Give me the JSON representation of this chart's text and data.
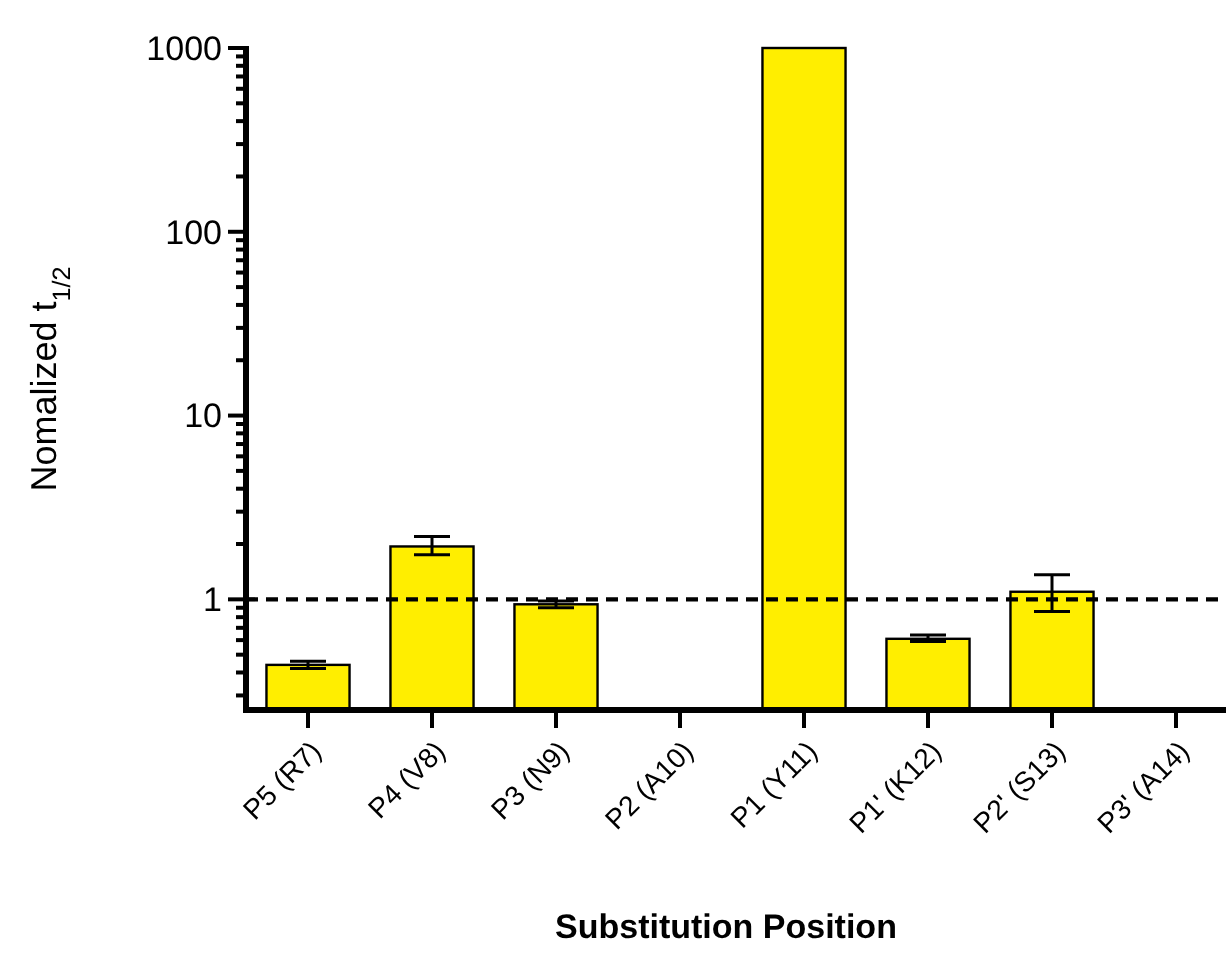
{
  "chart_data": {
    "type": "bar",
    "xlabel": "Substitution Position",
    "ylabel": "Nomalized t$_{1/2}$",
    "categories": [
      "P5 (R7)",
      "P4 (V8)",
      "P3 (N9)",
      "P2 (A10)",
      "P1 (Y11)",
      "P1' (K12)",
      "P2' (S13)",
      "P3' (A14)"
    ],
    "values": [
      0.44,
      1.94,
      0.94,
      null,
      1000,
      0.61,
      1.1,
      null
    ],
    "errors": [
      [
        0.42,
        0.46
      ],
      [
        1.75,
        2.2
      ],
      [
        0.9,
        0.98
      ],
      null,
      null,
      [
        0.59,
        0.64
      ],
      [
        0.86,
        1.36
      ],
      null
    ],
    "color": "#ffee00",
    "log": true,
    "ylim": [
      0.25,
      1000
    ],
    "yticks": [
      {
        "value": 0.3,
        "label": null
      },
      {
        "value": 0.4,
        "label": null
      },
      {
        "value": 0.5,
        "label": null
      },
      {
        "value": 0.6,
        "label": null
      },
      {
        "value": 0.7,
        "label": null
      },
      {
        "value": 0.8,
        "label": null
      },
      {
        "value": 0.9,
        "label": null
      },
      1,
      {
        "value": 2,
        "label": null
      },
      {
        "value": 3,
        "label": null
      },
      {
        "value": 4,
        "label": null
      },
      {
        "value": 5,
        "label": null
      },
      {
        "value": 6,
        "label": null
      },
      {
        "value": 7,
        "label": null
      },
      {
        "value": 8,
        "label": null
      },
      {
        "value": 9,
        "label": null
      },
      10,
      {
        "value": 20,
        "label": null
      },
      {
        "value": 30,
        "label": null
      },
      {
        "value": 40,
        "label": null
      },
      {
        "value": 50,
        "label": null
      },
      {
        "value": 60,
        "label": null
      },
      {
        "value": 70,
        "label": null
      },
      {
        "value": 80,
        "label": null
      },
      {
        "value": 90,
        "label": null
      },
      100,
      {
        "value": 200,
        "label": null
      },
      {
        "value": 300,
        "label": null
      },
      {
        "value": 400,
        "label": null
      },
      {
        "value": 500,
        "label": null
      },
      {
        "value": 600,
        "label": null
      },
      {
        "value": 700,
        "label": null
      },
      {
        "value": 800,
        "label": null
      },
      {
        "value": 900,
        "label": null
      },
      1000
    ],
    "ref_lines": [
      {
        "axis": "y",
        "value": 1,
        "line_style": "dashed"
      }
    ]
  }
}
